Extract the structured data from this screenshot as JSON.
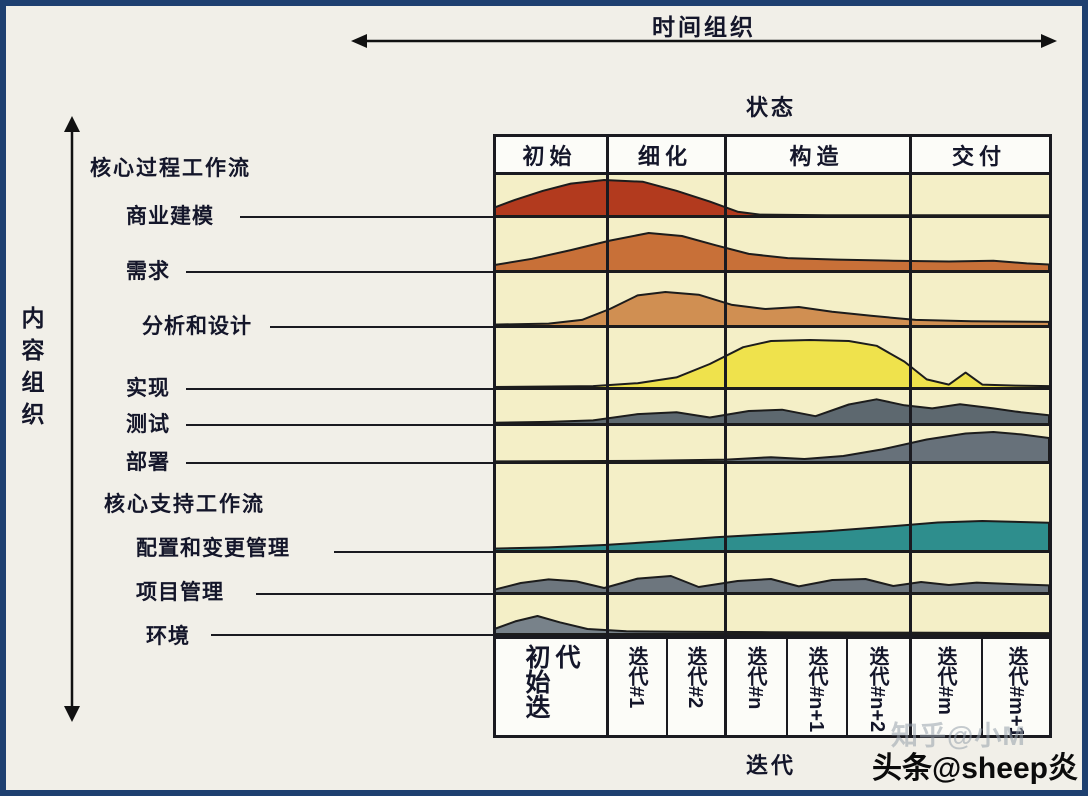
{
  "chart_data": {
    "type": "area",
    "top_axis_label": "时间组织",
    "left_axis_label": "内容组织",
    "phase_axis_label": "状态",
    "iteration_axis_label": "迭代",
    "phases": [
      "初始",
      "细化",
      "构造",
      "交付"
    ],
    "iterations": [
      "初始迭代",
      "迭代#1",
      "迭代#2",
      "迭代#n",
      "迭代#n+1",
      "迭代#n+2",
      "迭代#m",
      "迭代#m+1"
    ],
    "workflow_groups": {
      "core": "核心过程工作流",
      "support": "核心支持工作流"
    },
    "x_range_note": "x normalized 0-1 across phases; phase boundaries at 0.20, 0.41, 0.75",
    "series": [
      {
        "name": "商业建模",
        "color": "#b23a1e",
        "points": [
          [
            0,
            0.22
          ],
          [
            0.04,
            0.45
          ],
          [
            0.09,
            0.7
          ],
          [
            0.14,
            0.9
          ],
          [
            0.2,
            1
          ],
          [
            0.27,
            0.95
          ],
          [
            0.33,
            0.7
          ],
          [
            0.39,
            0.4
          ],
          [
            0.44,
            0.12
          ],
          [
            0.48,
            0.04
          ],
          [
            0.6,
            0.02
          ],
          [
            1,
            0.02
          ]
        ]
      },
      {
        "name": "需求",
        "color": "#c87038",
        "points": [
          [
            0,
            0.15
          ],
          [
            0.07,
            0.32
          ],
          [
            0.14,
            0.55
          ],
          [
            0.21,
            0.8
          ],
          [
            0.28,
            1
          ],
          [
            0.34,
            0.92
          ],
          [
            0.4,
            0.68
          ],
          [
            0.46,
            0.45
          ],
          [
            0.53,
            0.34
          ],
          [
            0.62,
            0.3
          ],
          [
            0.72,
            0.27
          ],
          [
            0.82,
            0.25
          ],
          [
            0.9,
            0.27
          ],
          [
            0.96,
            0.2
          ],
          [
            1,
            0.17
          ]
        ]
      },
      {
        "name": "分析和设计",
        "color": "#d08f52",
        "points": [
          [
            0,
            0.04
          ],
          [
            0.1,
            0.07
          ],
          [
            0.16,
            0.18
          ],
          [
            0.21,
            0.5
          ],
          [
            0.26,
            0.9
          ],
          [
            0.31,
            1
          ],
          [
            0.37,
            0.92
          ],
          [
            0.43,
            0.62
          ],
          [
            0.49,
            0.5
          ],
          [
            0.55,
            0.56
          ],
          [
            0.61,
            0.42
          ],
          [
            0.68,
            0.3
          ],
          [
            0.76,
            0.18
          ],
          [
            0.86,
            0.14
          ],
          [
            1,
            0.12
          ]
        ]
      },
      {
        "name": "实现",
        "color": "#efe24c",
        "points": [
          [
            0,
            0.02
          ],
          [
            0.18,
            0.04
          ],
          [
            0.26,
            0.1
          ],
          [
            0.33,
            0.22
          ],
          [
            0.39,
            0.5
          ],
          [
            0.45,
            0.85
          ],
          [
            0.5,
            0.98
          ],
          [
            0.57,
            1
          ],
          [
            0.64,
            0.98
          ],
          [
            0.69,
            0.88
          ],
          [
            0.74,
            0.55
          ],
          [
            0.78,
            0.18
          ],
          [
            0.82,
            0.07
          ],
          [
            0.85,
            0.32
          ],
          [
            0.88,
            0.07
          ],
          [
            0.94,
            0.05
          ],
          [
            1,
            0.04
          ]
        ]
      },
      {
        "name": "测试",
        "color": "#5d686f",
        "points": [
          [
            0,
            0.05
          ],
          [
            0.1,
            0.08
          ],
          [
            0.18,
            0.14
          ],
          [
            0.26,
            0.38
          ],
          [
            0.33,
            0.45
          ],
          [
            0.39,
            0.25
          ],
          [
            0.46,
            0.5
          ],
          [
            0.52,
            0.55
          ],
          [
            0.58,
            0.3
          ],
          [
            0.64,
            0.75
          ],
          [
            0.69,
            0.95
          ],
          [
            0.74,
            0.72
          ],
          [
            0.79,
            0.6
          ],
          [
            0.84,
            0.76
          ],
          [
            0.9,
            0.6
          ],
          [
            0.95,
            0.45
          ],
          [
            1,
            0.34
          ]
        ]
      },
      {
        "name": "部署",
        "color": "#67717a",
        "points": [
          [
            0,
            0.02
          ],
          [
            0.28,
            0.04
          ],
          [
            0.42,
            0.08
          ],
          [
            0.5,
            0.16
          ],
          [
            0.56,
            0.1
          ],
          [
            0.63,
            0.2
          ],
          [
            0.7,
            0.42
          ],
          [
            0.78,
            0.75
          ],
          [
            0.85,
            0.95
          ],
          [
            0.9,
            1
          ],
          [
            0.95,
            0.92
          ],
          [
            1,
            0.8
          ]
        ]
      },
      {
        "name": "配置和变更管理",
        "color": "#2e8e8d",
        "points": [
          [
            0,
            0.08
          ],
          [
            0.1,
            0.12
          ],
          [
            0.2,
            0.2
          ],
          [
            0.3,
            0.32
          ],
          [
            0.4,
            0.46
          ],
          [
            0.5,
            0.56
          ],
          [
            0.6,
            0.66
          ],
          [
            0.7,
            0.8
          ],
          [
            0.8,
            0.95
          ],
          [
            0.88,
            1
          ],
          [
            1,
            0.94
          ]
        ]
      },
      {
        "name": "项目管理",
        "color": "#6d767e",
        "points": [
          [
            0,
            0.15
          ],
          [
            0.05,
            0.5
          ],
          [
            0.1,
            0.68
          ],
          [
            0.15,
            0.58
          ],
          [
            0.2,
            0.25
          ],
          [
            0.26,
            0.72
          ],
          [
            0.32,
            0.85
          ],
          [
            0.37,
            0.3
          ],
          [
            0.44,
            0.6
          ],
          [
            0.5,
            0.7
          ],
          [
            0.55,
            0.33
          ],
          [
            0.61,
            0.65
          ],
          [
            0.67,
            0.7
          ],
          [
            0.72,
            0.35
          ],
          [
            0.77,
            0.55
          ],
          [
            0.82,
            0.4
          ],
          [
            0.87,
            0.52
          ],
          [
            0.93,
            0.45
          ],
          [
            1,
            0.38
          ]
        ]
      },
      {
        "name": "环境",
        "color": "#78828a",
        "points": [
          [
            0,
            0.25
          ],
          [
            0.04,
            0.7
          ],
          [
            0.08,
            1
          ],
          [
            0.12,
            0.65
          ],
          [
            0.17,
            0.28
          ],
          [
            0.24,
            0.15
          ],
          [
            0.34,
            0.12
          ],
          [
            0.5,
            0.1
          ],
          [
            0.7,
            0.08
          ],
          [
            1,
            0.05
          ]
        ]
      }
    ]
  },
  "watermarks": {
    "faint": "知乎@小M",
    "main": "头条@sheep炎"
  },
  "colors": {
    "frame": "#1e4070",
    "chart_bg": "#f4efc7",
    "row_bg": "#fcfcf8",
    "grid": "#1a1a20"
  }
}
